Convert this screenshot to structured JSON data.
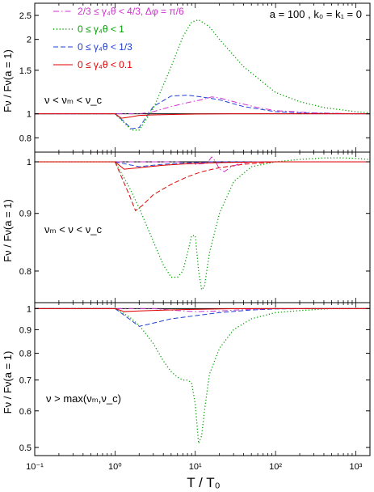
{
  "chart_data": {
    "type": "line",
    "xlabel": "T / T₀",
    "x_ticks": [
      "10⁻¹",
      "10⁰",
      "10¹",
      "10²",
      "10³"
    ],
    "xlim": [
      0.1,
      1500
    ],
    "x_scale": "log",
    "legend": {
      "entries": [
        {
          "label": "2/3 ≤ γ₄θ < 4/3, Δφ = π/6",
          "color": "#cc33cc",
          "style": "dashdot"
        },
        {
          "label": "0 ≤ γ₄θ < 1",
          "color": "#00a000",
          "style": "dotted"
        },
        {
          "label": "0 ≤ γ₄θ < 1/3",
          "color": "#2040d0",
          "style": "dashed"
        },
        {
          "label": "0 ≤ γ₄θ < 0.1",
          "color": "#e00000",
          "style": "solid"
        }
      ],
      "placement": "top-left"
    },
    "annotation": "a = 100 ,  k₀ = k₁ = 0",
    "panels": [
      {
        "ylabel": "Fν / Fν(a = 1)",
        "label": "ν < νₘ < ν_c",
        "y_scale": "log",
        "ylim": [
          0.7,
          2.8
        ],
        "y_ticks": [
          {
            "value": 0.8,
            "label": "0.8"
          },
          {
            "value": 1,
            "label": "1"
          },
          {
            "value": 1.5,
            "label": "1.5"
          },
          {
            "value": 2,
            "label": "2"
          },
          {
            "value": 2.5,
            "label": "2.5"
          }
        ],
        "series": [
          {
            "color": "#00a000",
            "style": "dotted",
            "x": [
              0.1,
              1,
              1.3,
              1.6,
              2,
              3,
              5,
              7,
              9,
              11,
              15,
              20,
              40,
              100,
              200,
              400,
              1000,
              1500
            ],
            "y": [
              1,
              1,
              0.92,
              0.86,
              0.86,
              1.05,
              1.55,
              2.05,
              2.35,
              2.4,
              2.25,
              2.0,
              1.55,
              1.22,
              1.12,
              1.06,
              1.02,
              1.01
            ]
          },
          {
            "color": "#2040d0",
            "style": "dashed",
            "x": [
              0.1,
              1,
              1.3,
              1.6,
              2,
              3,
              5,
              8,
              12,
              20,
              40,
              100,
              300,
              1000,
              1500
            ],
            "y": [
              1,
              1,
              0.93,
              0.87,
              0.88,
              1.07,
              1.18,
              1.19,
              1.17,
              1.14,
              1.07,
              1.02,
              1.005,
              1.0,
              1.0
            ]
          },
          {
            "color": "#cc33cc",
            "style": "dashdot",
            "x": [
              0.1,
              1,
              2,
              3,
              5,
              8,
              12,
              16,
              20,
              30,
              60,
              100,
              300,
              1000,
              1500
            ],
            "y": [
              1,
              1,
              1,
              1.02,
              1.07,
              1.11,
              1.14,
              1.17,
              1.16,
              1.12,
              1.06,
              1.03,
              1.01,
              1.0,
              1.0
            ]
          },
          {
            "color": "#e00000",
            "style": "solid",
            "x": [
              0.1,
              1,
              1.2,
              1.5,
              2,
              3,
              6,
              12,
              30,
              100,
              1500
            ],
            "y": [
              1,
              1,
              0.96,
              0.97,
              0.985,
              0.99,
              0.995,
              0.998,
              1.0,
              1.0,
              1.0
            ]
          }
        ]
      },
      {
        "ylabel": "Fν / Fν(a = 1)",
        "label": "νₘ < ν < ν_c",
        "y_scale": "log",
        "ylim": [
          0.75,
          1.02
        ],
        "y_ticks": [
          {
            "value": 0.8,
            "label": "0.8"
          },
          {
            "value": 0.9,
            "label": "0.9"
          },
          {
            "value": 1,
            "label": "1"
          }
        ],
        "series": [
          {
            "color": "#00a000",
            "style": "dotted",
            "x": [
              0.1,
              1,
              1.5,
              2,
              3,
              4,
              5,
              6,
              7,
              8,
              9,
              10,
              11,
              12,
              13,
              15,
              20,
              30,
              50,
              100,
              200,
              400,
              700,
              1000,
              1500
            ],
            "y": [
              1,
              1,
              0.95,
              0.91,
              0.85,
              0.81,
              0.79,
              0.79,
              0.8,
              0.83,
              0.86,
              0.86,
              0.8,
              0.77,
              0.775,
              0.83,
              0.9,
              0.96,
              0.99,
              1.0,
              1.005,
              1.008,
              1.008,
              1.007,
              1.005
            ]
          },
          {
            "color": "#e00000",
            "style": "dashed",
            "x": [
              0.1,
              1,
              1.5,
              1.8,
              2.2,
              3,
              5,
              8,
              12,
              20,
              40,
              70,
              100,
              200,
              1500
            ],
            "y": [
              1,
              1,
              0.935,
              0.905,
              0.915,
              0.935,
              0.955,
              0.97,
              0.98,
              0.988,
              0.995,
              0.998,
              1.0,
              1.0,
              1.0
            ]
          },
          {
            "color": "#2040d0",
            "style": "dashed",
            "x": [
              0.1,
              1,
              2,
              4,
              8,
              12,
              16,
              20,
              100,
              1500
            ],
            "y": [
              1,
              1,
              0.99,
              0.995,
              0.998,
              0.999,
              1.0,
              1.0,
              1.0,
              1.0
            ]
          },
          {
            "color": "#cc33cc",
            "style": "dashdot",
            "x": [
              0.1,
              1,
              6,
              10,
              14,
              16,
              18,
              20,
              23,
              27,
              35,
              50,
              100,
              1500
            ],
            "y": [
              1,
              1,
              1,
              0.995,
              0.997,
              1.01,
              1.0,
              0.985,
              0.98,
              0.988,
              0.996,
              1.0,
              1.0,
              1.0
            ]
          },
          {
            "color": "#e00000",
            "style": "solid",
            "x": [
              0.1,
              1,
              1.3,
              2,
              4,
              8,
              15,
              30,
              100,
              1500
            ],
            "y": [
              1,
              1,
              0.985,
              0.988,
              0.993,
              0.996,
              0.998,
              0.999,
              1.0,
              1.0
            ]
          }
        ]
      },
      {
        "ylabel": "Fν / Fν(a = 1)",
        "label": "ν > max(νₘ,ν_c)",
        "y_scale": "log",
        "ylim": [
          0.48,
          1.03
        ],
        "y_ticks": [
          {
            "value": 0.5,
            "label": "0.5"
          },
          {
            "value": 0.6,
            "label": "0.6"
          },
          {
            "value": 0.7,
            "label": "0.7"
          },
          {
            "value": 0.8,
            "label": "0.8"
          },
          {
            "value": 0.9,
            "label": "0.9"
          },
          {
            "value": 1,
            "label": "1"
          }
        ],
        "series": [
          {
            "color": "#00a000",
            "style": "dotted",
            "x": [
              0.1,
              1,
              1.5,
              2,
              3,
              4,
              5,
              6,
              7,
              8,
              9,
              10,
              11,
              12,
              13,
              15,
              20,
              30,
              50,
              100,
              200,
              500,
              1000,
              1500
            ],
            "y": [
              1,
              1,
              0.96,
              0.92,
              0.84,
              0.77,
              0.73,
              0.71,
              0.7,
              0.7,
              0.69,
              0.62,
              0.51,
              0.53,
              0.6,
              0.72,
              0.82,
              0.9,
              0.95,
              0.98,
              0.99,
              1.0,
              1.0,
              1.0
            ]
          },
          {
            "color": "#2040d0",
            "style": "dashed",
            "x": [
              0.1,
              1,
              1.5,
              2,
              3,
              5,
              10,
              20,
              50,
              100,
              300,
              1500
            ],
            "y": [
              1,
              1,
              0.95,
              0.915,
              0.93,
              0.95,
              0.965,
              0.98,
              0.993,
              0.998,
              1.0,
              1.0
            ]
          },
          {
            "color": "#cc33cc",
            "style": "dashdot",
            "x": [
              0.1,
              1,
              3,
              6,
              10,
              20,
              40,
              100,
              1500
            ],
            "y": [
              1,
              1,
              1,
              0.99,
              0.985,
              0.988,
              0.995,
              1.0,
              1.0
            ]
          },
          {
            "color": "#e00000",
            "style": "solid",
            "x": [
              0.1,
              1,
              1.3,
              2,
              4,
              8,
              15,
              30,
              100,
              1500
            ],
            "y": [
              1,
              1,
              0.985,
              0.988,
              0.992,
              0.995,
              0.997,
              0.999,
              1.0,
              1.0
            ]
          }
        ]
      }
    ]
  }
}
